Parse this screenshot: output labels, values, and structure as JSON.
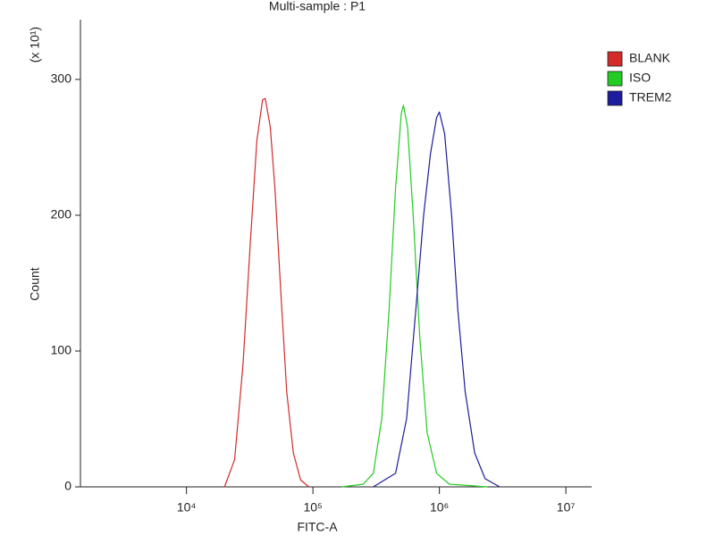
{
  "chart_data": {
    "type": "line",
    "title": "Multi-sample : P1",
    "x_label": "FITC-A",
    "y_label": "Count",
    "y_multiplier": "(x 10¹)",
    "log_x": true,
    "xlim": [
      1450,
      16000000
    ],
    "xticks": [
      {
        "value": 10000,
        "label": "10⁴"
      },
      {
        "value": 100000,
        "label": "10⁵"
      },
      {
        "value": 1000000,
        "label": "10⁶"
      },
      {
        "value": 10000000,
        "label": "10⁷"
      }
    ],
    "ylim": [
      0,
      344
    ],
    "yticks": [
      0,
      100,
      200,
      300
    ],
    "legend": "right",
    "series": [
      {
        "name": "BLANK",
        "color": "#d42a2a",
        "x": [
          20000,
          24000,
          28000,
          32000,
          36000,
          40000,
          42000,
          46000,
          50000,
          56000,
          62000,
          70000,
          80000,
          93000
        ],
        "values": [
          0,
          20,
          90,
          180,
          255,
          285,
          286,
          265,
          220,
          140,
          70,
          25,
          5,
          0
        ]
      },
      {
        "name": "ISO",
        "color": "#22cc22",
        "x": [
          170000,
          250000,
          300000,
          350000,
          400000,
          450000,
          500000,
          520000,
          560000,
          620000,
          700000,
          800000,
          950000,
          1200000,
          2400000
        ],
        "values": [
          0,
          2,
          10,
          50,
          130,
          220,
          275,
          281,
          265,
          200,
          110,
          40,
          10,
          2,
          0
        ]
      },
      {
        "name": "TREM2",
        "color": "#1c1c9c",
        "x": [
          300000,
          450000,
          550000,
          650000,
          750000,
          850000,
          950000,
          1000000,
          1100000,
          1250000,
          1400000,
          1600000,
          1900000,
          2300000,
          3000000
        ],
        "values": [
          0,
          10,
          50,
          130,
          200,
          245,
          272,
          276,
          260,
          200,
          130,
          70,
          25,
          6,
          0
        ]
      }
    ]
  }
}
